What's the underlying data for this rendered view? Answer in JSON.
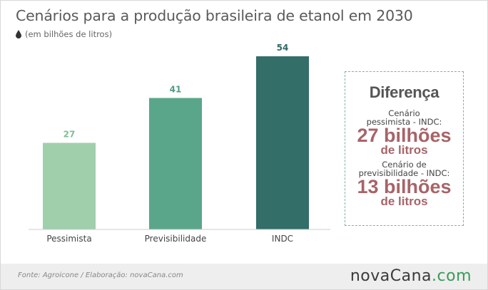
{
  "header": {
    "title": "Cenários para a produção brasileira de etanol em 2030",
    "subtitle": "(em bilhões de litros)",
    "subtitle_icon": "drop-icon"
  },
  "chart_data": {
    "type": "bar",
    "title": "Cenários para a produção brasileira de etanol em 2030",
    "subtitle": "(em bilhões de litros)",
    "categories": [
      "Pessimista",
      "Previsibilidade",
      "INDC"
    ],
    "values": [
      27,
      41,
      54
    ],
    "colors": [
      "#9fcfab",
      "#5aa68a",
      "#336e69"
    ],
    "label_colors": [
      "#7fbf93",
      "#4f9c80",
      "#2f6a64"
    ],
    "ylim": [
      0,
      60
    ],
    "grid": false,
    "legend": "none"
  },
  "difference": {
    "title": "Diferença",
    "item1_desc_line1": "Cenário",
    "item1_desc_line2": "pessimista -  INDC:",
    "item1_value": "27 bilhões",
    "item1_unit": "de litros",
    "item2_desc_line1": "Cenário de",
    "item2_desc_line2": "previsibilidade - INDC:",
    "item2_value": "13 bilhões",
    "item2_unit": "de litros",
    "border_color": "#7fb49b",
    "value_color": "#a76468"
  },
  "footer": {
    "source": "Fonte:  Agroicone   / Elaboração:   novaCana.com",
    "brand_prefix": "nova",
    "brand_main": "Cana",
    "brand_suffix": ".com",
    "accent_color": "#3a9a5a"
  }
}
